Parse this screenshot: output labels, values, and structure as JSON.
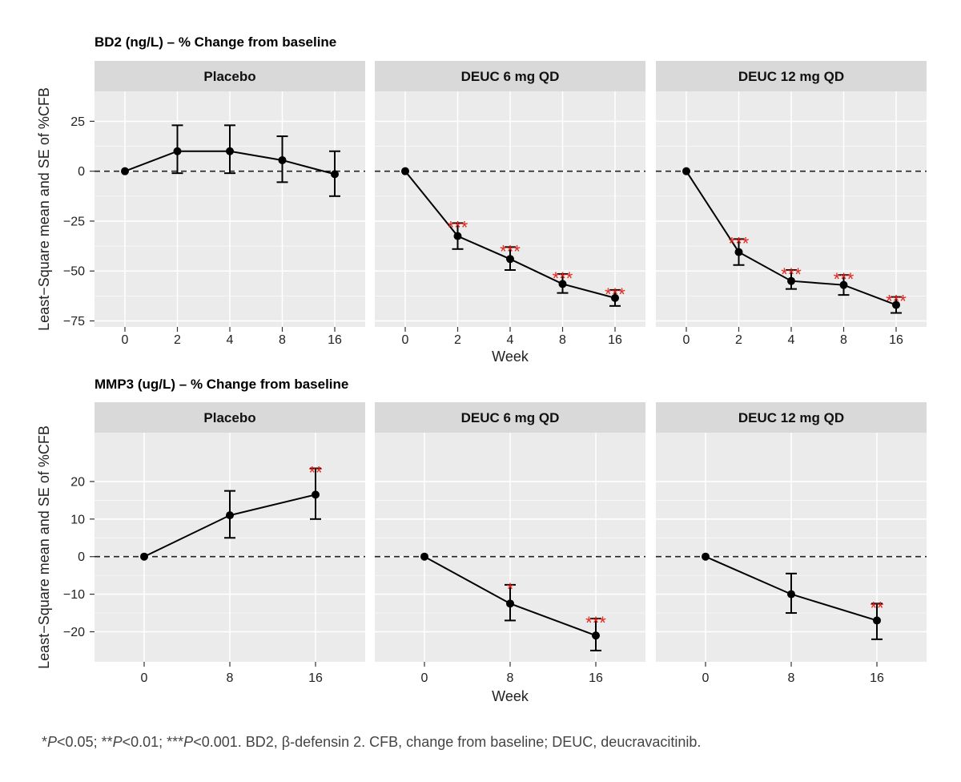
{
  "chart_data": [
    {
      "type": "line",
      "title": "BD2 (ng/L) – % Change from baseline",
      "xlabel": "Week",
      "ylabel": "Least−Square mean and SE of %CFB",
      "x": [
        "0",
        "2",
        "4",
        "8",
        "16"
      ],
      "ylim": [
        -78,
        40
      ],
      "yticks": [
        25,
        0,
        -25,
        -50,
        -75
      ],
      "ytick_labels": [
        "25",
        "0",
        "−25",
        "−50",
        "−75"
      ],
      "reference_line": 0,
      "grid": true,
      "facets": [
        {
          "name": "Placebo",
          "mean": [
            0,
            10,
            10,
            5.5,
            -1.5
          ],
          "lower": [
            0,
            -1,
            -1,
            -5.5,
            -12.5
          ],
          "upper": [
            0,
            23,
            23,
            17.5,
            10
          ],
          "sig": [
            "",
            "",
            "",
            "",
            ""
          ]
        },
        {
          "name": "DEUC 6 mg QD",
          "mean": [
            0,
            -32.5,
            -44,
            -56.5,
            -63.5
          ],
          "lower": [
            0,
            -39,
            -49.5,
            -61,
            -67.5
          ],
          "upper": [
            0,
            -26,
            -38,
            -51.5,
            -59.5
          ],
          "sig": [
            "",
            "***",
            "***",
            "***",
            "***"
          ]
        },
        {
          "name": "DEUC 12 mg QD",
          "mean": [
            0,
            -40.5,
            -55,
            -57,
            -67
          ],
          "lower": [
            0,
            -47,
            -59,
            -62,
            -71
          ],
          "upper": [
            0,
            -34,
            -49.5,
            -52,
            -63
          ],
          "sig": [
            "",
            "***",
            "***",
            "***",
            "***"
          ]
        }
      ]
    },
    {
      "type": "line",
      "title": "MMP3 (ug/L) – % Change from baseline",
      "xlabel": "Week",
      "ylabel": "Least−Square mean and SE of %CFB",
      "x": [
        "0",
        "8",
        "16"
      ],
      "ylim": [
        -28,
        33
      ],
      "yticks": [
        20,
        10,
        0,
        -10,
        -20
      ],
      "ytick_labels": [
        "20",
        "10",
        "0",
        "−10",
        "−20"
      ],
      "reference_line": 0,
      "grid": true,
      "facets": [
        {
          "name": "Placebo",
          "mean": [
            0,
            11,
            16.5
          ],
          "lower": [
            0,
            5,
            10
          ],
          "upper": [
            0,
            17.5,
            23.5
          ],
          "sig": [
            "",
            "",
            "**"
          ]
        },
        {
          "name": "DEUC 6 mg QD",
          "mean": [
            0,
            -12.5,
            -21
          ],
          "lower": [
            0,
            -17,
            -25
          ],
          "upper": [
            0,
            -7.5,
            -16.5
          ],
          "sig": [
            "",
            "*",
            "***"
          ]
        },
        {
          "name": "DEUC 12 mg QD",
          "mean": [
            0,
            -10,
            -17
          ],
          "lower": [
            0,
            -15,
            -22
          ],
          "upper": [
            0,
            -4.5,
            -12.5
          ],
          "sig": [
            "",
            "",
            "**"
          ]
        }
      ]
    }
  ],
  "footnote": {
    "segments": [
      {
        "text": "*",
        "italic": false
      },
      {
        "text": "P",
        "italic": true
      },
      {
        "text": "<0.05; **",
        "italic": false
      },
      {
        "text": "P",
        "italic": true
      },
      {
        "text": "<0.01; ***",
        "italic": false
      },
      {
        "text": "P",
        "italic": true
      },
      {
        "text": "<0.001. BD2, β-defensin 2. CFB, change from baseline; DEUC, deucravacitinib.",
        "italic": false
      }
    ]
  },
  "colors": {
    "panel_bg": "#ebebeb",
    "strip_bg": "#d9d9d9",
    "grid": "#ffffff",
    "line": "#000000",
    "significance": "#e3261e"
  }
}
